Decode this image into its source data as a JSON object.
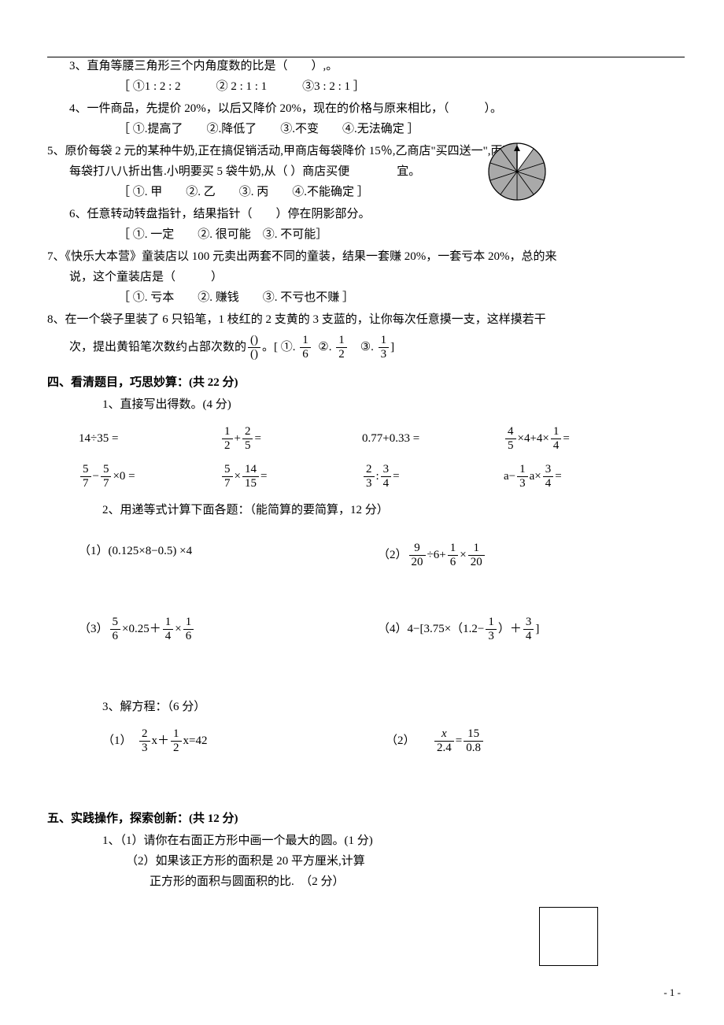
{
  "q3": {
    "text": "3、直角等腰三角形三个内角度数的比是（　　）,。",
    "opts": "［ ①1 : 2 : 2　　　② 2 : 1 : 1　　　③3 : 2 : 1 ］"
  },
  "q4": {
    "text": "4、一件商品，先提价 20%，以后又降价 20%，现在的价格与原来相比，（　　　）。",
    "opts": "［ ①.提高了　　②.降低了　　③.不变　　④.无法确定 ］"
  },
  "q5": {
    "l1": "5、原价每袋 2 元的某种牛奶,正在搞促销活动,甲商店每袋降价 15％,乙商店\"买四送一\",丙商店",
    "l2": "每袋打八八折出售.小明要买 5 袋牛奶,从（  ）商店买便　　　　宜。",
    "opts": "［ ①. 甲　　②. 乙　　③. 丙　　④.不能确定 ］"
  },
  "q6": {
    "text": "6、任意转动转盘指针，结果指针（　　）停在阴影部分。",
    "opts": "［ ①. 一定　　②. 很可能　③. 不可能］"
  },
  "q7": {
    "l1": "7、《快乐大本营》童装店以 100 元卖出两套不同的童装，结果一套赚 20%，一套亏本 20%，总的来",
    "l2": "说，这个童装店是（　　　）",
    "opts": "［ ①. 亏本　　②. 赚钱　　③. 不亏也不赚 ］"
  },
  "q8": {
    "l1": "8、在一个袋子里装了 6 只铅笔，1 枝红的 2 支黄的 3 支蓝的，让你每次任意摸一支，这样摸若干",
    "l2_a": "次，提出黄铅笔次数约占部次数的",
    "l2_b": "。[ ①.",
    "l2_c": "②.",
    "l2_d": "③.",
    "l2_e": "]",
    "f0n": "()",
    "f0d": "()",
    "f1n": "1",
    "f1d": "6",
    "f2n": "1",
    "f2d": "2",
    "f3n": "1",
    "f3d": "3"
  },
  "sec4": {
    "title": "四、看清题目，巧思妙算：(共 22 分)",
    "p1": "1、直接写出得数。(4 分)",
    "r1": {
      "a": "14÷35 =",
      "b_pre": "",
      "b_f1n": "1",
      "b_f1d": "2",
      "b_mid": " + ",
      "b_f2n": "2",
      "b_f2d": "5",
      "b_post": "=",
      "c": "0.77+0.33 =",
      "d_f1n": "4",
      "d_f1d": "5",
      "d_mid1": "×4+4×",
      "d_f2n": "1",
      "d_f2d": "4",
      "d_post": " ="
    },
    "r2": {
      "a_f1n": "5",
      "a_f1d": "7",
      "a_mid": "−",
      "a_f2n": "5",
      "a_f2d": "7",
      "a_post": "×0 =",
      "b_f1n": "5",
      "b_f1d": "7",
      "b_mid": "×",
      "b_f2n": "14",
      "b_f2d": "15",
      "b_post": " =",
      "c_f1n": "2",
      "c_f1d": "3",
      "c_mid": " : ",
      "c_f2n": "3",
      "c_f2d": "4",
      "c_post": " =",
      "d_pre": "a−",
      "d_f1n": "1",
      "d_f1d": "3",
      "d_mid": "a×",
      "d_f2n": "3",
      "d_f2d": "4",
      "d_post": " ="
    },
    "p2": "2、用递等式计算下面各题：（能简算的要简算，12 分）",
    "e1": "（1）(0.125×8−0.5) ×4",
    "e2_pre": "（2）",
    "e2_f1n": "9",
    "e2_f1d": "20",
    "e2_a": "÷6+",
    "e2_f2n": "1",
    "e2_f2d": "6",
    "e2_b": "×",
    "e2_f3n": "1",
    "e2_f3d": "20",
    "e3_pre": "（3）",
    "e3_f1n": "5",
    "e3_f1d": "6",
    "e3_a": "×0.25＋",
    "e3_f2n": "1",
    "e3_f2d": "4",
    "e3_b": "×",
    "e3_f3n": "1",
    "e3_f3d": "6",
    "e4_pre": "（4）4−[3.75×（1.2−",
    "e4_f1n": "1",
    "e4_f1d": "3",
    "e4_a": "）＋",
    "e4_f2n": "3",
    "e4_f2d": "4",
    "e4_b": "]",
    "p3": "3、解方程：（6 分）",
    "eq1_pre": "（1）　",
    "eq1_f1n": "2",
    "eq1_f1d": "3",
    "eq1_a": "x＋",
    "eq1_f2n": "1",
    "eq1_f2d": "2",
    "eq1_b": "x=42",
    "eq2_pre": "（2）　　",
    "eq2_f1n": "x",
    "eq2_f1d": "2.4",
    "eq2_mid": " = ",
    "eq2_f2n": "15",
    "eq2_f2d": "0.8"
  },
  "sec5": {
    "title": "五、实践操作，探索创新：(共 12 分)",
    "l1": "1、（1）请你在右面正方形中画一个最大的圆。(1 分)",
    "l2": "（2）如果该正方形的面积是 20 平方厘米,计算",
    "l3": "正方形的面积与圆面积的比.　（2 分）"
  },
  "spinner": {
    "shaded": "#a9a9a9",
    "light": "#ffffff",
    "stroke": "#000000"
  },
  "pagenum": "- 1 -"
}
